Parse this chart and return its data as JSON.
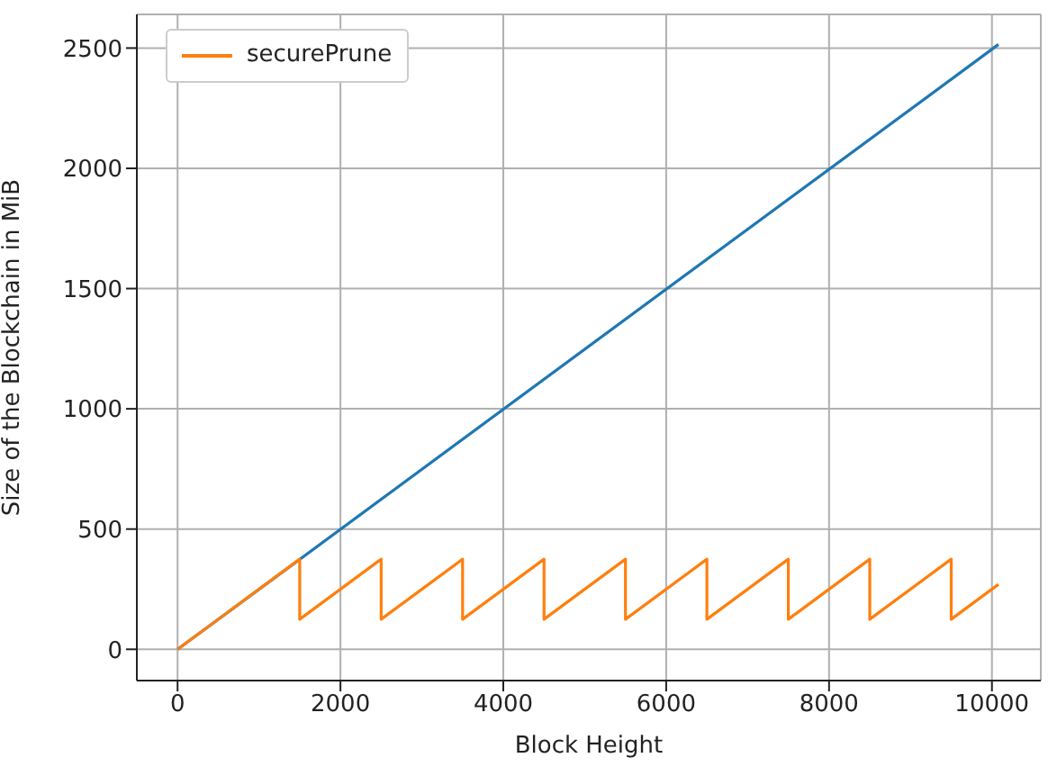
{
  "chart_data": {
    "type": "line",
    "xlabel": "Block Height",
    "ylabel": "Size of the Blockchain in MiB",
    "xlim": [
      -500,
      10600
    ],
    "ylim": [
      -130,
      2640
    ],
    "xticks": [
      0,
      2000,
      4000,
      6000,
      8000,
      10000
    ],
    "yticks": [
      0,
      500,
      1000,
      1500,
      2000,
      2500
    ],
    "grid": true,
    "legend": "top left",
    "line_style": "solid",
    "marker": "none",
    "series": [
      {
        "color": "#1f77b4",
        "x": [
          0,
          10080
        ],
        "values": [
          0,
          2515
        ]
      },
      {
        "name": "securePrune",
        "color": "#ff7f0e",
        "x": [
          0,
          1500,
          1500,
          2500,
          2500,
          3500,
          3500,
          4500,
          4500,
          5500,
          5500,
          6500,
          6500,
          7500,
          7500,
          8500,
          8500,
          9500,
          9500,
          10080
        ],
        "values": [
          0,
          375,
          125,
          375,
          125,
          375,
          125,
          375,
          125,
          375,
          125,
          375,
          125,
          375,
          125,
          375,
          125,
          375,
          125,
          270
        ]
      }
    ]
  }
}
